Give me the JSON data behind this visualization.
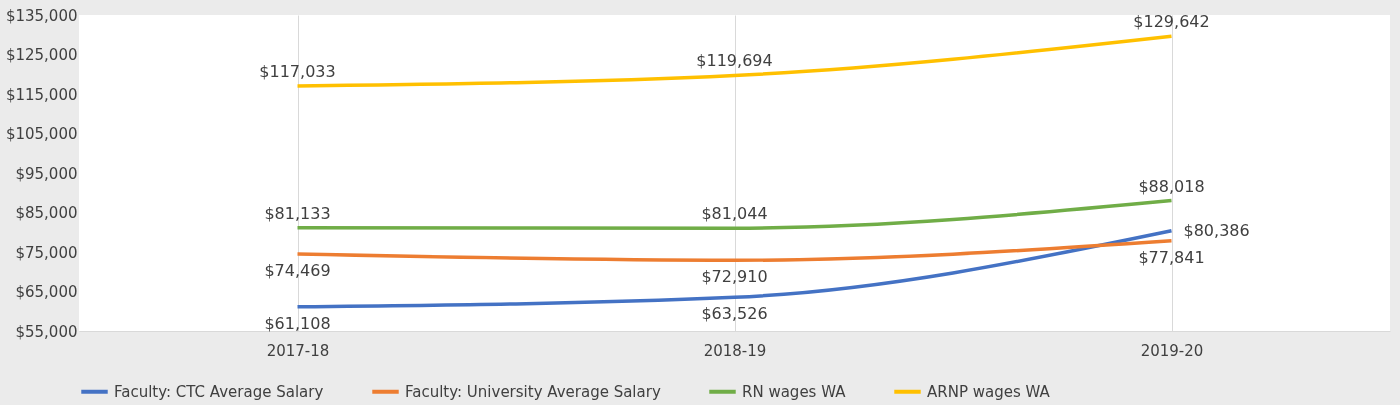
{
  "chart_data": {
    "type": "line",
    "categories": [
      "2017-18",
      "2018-19",
      "2019-20"
    ],
    "series": [
      {
        "name": "Faculty: CTC Average Salary",
        "color": "#4472c4",
        "values": [
          61108,
          63526,
          80386
        ],
        "value_labels": [
          "$61,108",
          "$63,526",
          "$80,386"
        ]
      },
      {
        "name": "Faculty: University Average Salary",
        "color": "#ed7d31",
        "values": [
          74469,
          72910,
          77841
        ],
        "value_labels": [
          "$74,469",
          "$72,910",
          "$77,841"
        ]
      },
      {
        "name": "RN wages WA",
        "color": "#70ad47",
        "values": [
          81133,
          81044,
          88018
        ],
        "value_labels": [
          "$81,133",
          "$81,044",
          "$88,018"
        ]
      },
      {
        "name": "ARNP wages WA",
        "color": "#ffc000",
        "values": [
          117033,
          119694,
          129642
        ],
        "value_labels": [
          "$117,033",
          "$119,694",
          "$129,642"
        ]
      }
    ],
    "ylim": [
      55000,
      135000
    ],
    "yticks": [
      {
        "value": 55000,
        "label": "$55,000"
      },
      {
        "value": 65000,
        "label": "$65,000"
      },
      {
        "value": 75000,
        "label": "$75,000"
      },
      {
        "value": 85000,
        "label": "$85,000"
      },
      {
        "value": 95000,
        "label": "$95,000"
      },
      {
        "value": 105000,
        "label": "$105,000"
      },
      {
        "value": 115000,
        "label": "$115,000"
      },
      {
        "value": 125000,
        "label": "$125,000"
      },
      {
        "value": 135000,
        "label": "$135,000"
      }
    ],
    "grid": "x",
    "legend": "bottom"
  }
}
